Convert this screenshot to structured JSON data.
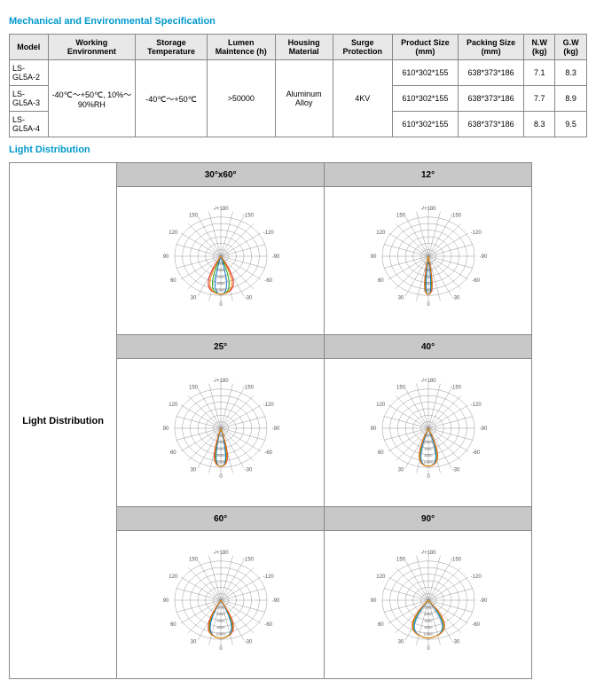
{
  "titles": {
    "mech": "Mechanical and Environmental Specification",
    "light": "Light Distribution"
  },
  "spec_table": {
    "headers": [
      "Model",
      "Working Environment",
      "Storage Temperature",
      "Lumen Maintence (h)",
      "Housing Material",
      "Surge Protection",
      "Product Size (mm)",
      "Packing Size (mm)",
      "N.W (kg)",
      "G.W (kg)"
    ],
    "rows": [
      {
        "model": "LS-GL5A-2",
        "ps": "610*302*155",
        "pk": "638*373*186",
        "nw": "7.1",
        "gw": "8.3"
      },
      {
        "model": "LS-GL5A-3",
        "ps": "610*302*155",
        "pk": "638*373*186",
        "nw": "7.7",
        "gw": "8.9"
      },
      {
        "model": "LS-GL5A-4",
        "ps": "610*302*155",
        "pk": "638*373*186",
        "nw": "8.3",
        "gw": "9.5"
      }
    ],
    "shared": {
      "env": "-40℃～+50℃, 10%～90%RH",
      "storage": "-40℃～+50℃",
      "lumen": ">50000",
      "housing": "Aluminum Alloy",
      "surge": "4KV"
    }
  },
  "dist_table": {
    "row_label": "Light Distribution",
    "panels": [
      {
        "title": "30°x60°",
        "angle_labels": [
          "-150",
          "-/+180",
          "150",
          "-120",
          "120",
          "-90",
          "90",
          "-60",
          "60",
          "-30",
          "30",
          "0"
        ],
        "beams": {
          "red": 70,
          "green": 45,
          "blue": 30,
          "orange": 60
        }
      },
      {
        "title": "12°",
        "angle_labels": [
          "-150",
          "-/+180",
          "150",
          "-120",
          "120",
          "-90",
          "90",
          "-60",
          "60",
          "-30",
          "30",
          "0"
        ],
        "beams": {
          "red": 20,
          "green": 15,
          "blue": 12,
          "orange": 18
        }
      },
      {
        "title": "25°",
        "angle_labels": [
          "-150",
          "-/+180",
          "150",
          "-120",
          "120",
          "-90",
          "90",
          "-60",
          "60",
          "-30",
          "30",
          "0"
        ],
        "beams": {
          "red": 35,
          "green": 28,
          "blue": 25,
          "orange": 32
        }
      },
      {
        "title": "40°",
        "angle_labels": [
          "-150",
          "-/+180",
          "150",
          "-120",
          "120",
          "-90",
          "90",
          "-60",
          "60",
          "-30",
          "30",
          "0"
        ],
        "beams": {
          "red": 50,
          "green": 42,
          "blue": 40,
          "orange": 48
        }
      },
      {
        "title": "60°",
        "angle_labels": [
          "-150",
          "-/+180",
          "150",
          "-120",
          "120",
          "-90",
          "90",
          "-60",
          "60",
          "-30",
          "30",
          "0"
        ],
        "beams": {
          "red": 70,
          "green": 62,
          "blue": 58,
          "orange": 66
        }
      },
      {
        "title": "90°",
        "angle_labels": [
          "-150",
          "-/+180",
          "150",
          "-120",
          "120",
          "-90",
          "90",
          "-60",
          "60",
          "-30",
          "30",
          "0"
        ],
        "beams": {
          "red": 95,
          "green": 88,
          "blue": 80,
          "orange": 92
        }
      }
    ],
    "ring_count": 6,
    "spoke_step_deg": 15,
    "colors": {
      "red": "#d22",
      "blue": "#17c",
      "green": "#2a2",
      "orange": "#e80",
      "grid": "#999"
    }
  }
}
